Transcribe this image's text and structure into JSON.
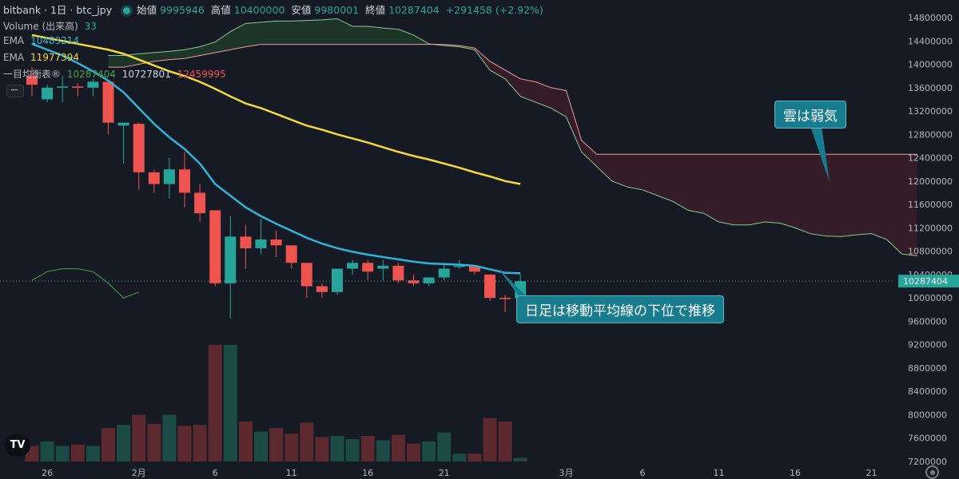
{
  "header": {
    "title": "bitbank · 1日 · btc_jpy",
    "open_label": "始値",
    "open_value": "9995946",
    "high_label": "高値",
    "high_value": "10400000",
    "low_label": "安値",
    "low_value": "9980001",
    "close_label": "終値",
    "close_value": "10287404",
    "change": "+291458 (+2.92%)"
  },
  "indicators": {
    "volume_label": "Volume (出来高)",
    "volume_value": "33",
    "ema1_label": "EMA",
    "ema1_value": "10483214",
    "ema2_label": "EMA",
    "ema2_value": "11977394",
    "ichimoku_label": "一目均衡表®",
    "ichimoku_v1": "10287404",
    "ichimoku_v2": "10727801",
    "ichimoku_v3": "12459995"
  },
  "annotations": {
    "cloud_note": "雲は弱気",
    "candle_note": "日足は移動平均線の下位で推移"
  },
  "logo_text": "TV",
  "colors": {
    "up": "#26a69a",
    "down": "#ef5350",
    "ema_fast": "#2bb5d9",
    "ema_slow": "#f5d93a",
    "cloud_bear": "#3a1f2a",
    "cloud_bull": "#1f3a2a"
  },
  "chart_data": {
    "type": "candlestick",
    "y_ticks": [
      "7200000",
      "7600000",
      "8000000",
      "8400000",
      "8800000",
      "9200000",
      "9600000",
      "10000000",
      "10400000",
      "10800000",
      "11200000",
      "11600000",
      "12000000",
      "12400000",
      "12800000",
      "13200000",
      "13600000",
      "14000000",
      "14400000",
      "14800000"
    ],
    "x_ticks": [
      {
        "label": "26",
        "index": 1
      },
      {
        "label": "2月",
        "index": 7
      },
      {
        "label": "6",
        "index": 12
      },
      {
        "label": "11",
        "index": 17
      },
      {
        "label": "16",
        "index": 22
      },
      {
        "label": "21",
        "index": 27
      },
      {
        "label": "3月",
        "index": 35
      },
      {
        "label": "6",
        "index": 40
      },
      {
        "label": "11",
        "index": 45
      },
      {
        "label": "16",
        "index": 50
      },
      {
        "label": "21",
        "index": 55
      }
    ],
    "last_price": "10287404",
    "candles": [
      {
        "o": 13800000,
        "h": 13950000,
        "l": 13450000,
        "c": 13650000,
        "v": 140
      },
      {
        "o": 13400000,
        "h": 13650000,
        "l": 13350000,
        "c": 13600000,
        "v": 180
      },
      {
        "o": 13600000,
        "h": 13800000,
        "l": 13350000,
        "c": 13620000,
        "v": 140
      },
      {
        "o": 13620000,
        "h": 13680000,
        "l": 13450000,
        "c": 13600000,
        "v": 150
      },
      {
        "o": 13600000,
        "h": 13750000,
        "l": 13450000,
        "c": 13700000,
        "v": 140
      },
      {
        "o": 13700000,
        "h": 13700000,
        "l": 12800000,
        "c": 13000000,
        "v": 300
      },
      {
        "o": 12950000,
        "h": 13000000,
        "l": 12300000,
        "c": 13000000,
        "v": 330
      },
      {
        "o": 12980000,
        "h": 13000000,
        "l": 11850000,
        "c": 12150000,
        "v": 420
      },
      {
        "o": 12150000,
        "h": 12200000,
        "l": 11800000,
        "c": 11950000,
        "v": 340
      },
      {
        "o": 11950000,
        "h": 12400000,
        "l": 11700000,
        "c": 12200000,
        "v": 420
      },
      {
        "o": 12200000,
        "h": 12500000,
        "l": 11550000,
        "c": 11800000,
        "v": 320
      },
      {
        "o": 11800000,
        "h": 11950000,
        "l": 11300000,
        "c": 11450000,
        "v": 330
      },
      {
        "o": 11500000,
        "h": 11500000,
        "l": 10200000,
        "c": 10250000,
        "v": 1050
      },
      {
        "o": 10250000,
        "h": 11400000,
        "l": 9650000,
        "c": 11050000,
        "v": 1050
      },
      {
        "o": 11050000,
        "h": 11250000,
        "l": 10500000,
        "c": 10850000,
        "v": 360
      },
      {
        "o": 10850000,
        "h": 11350000,
        "l": 10750000,
        "c": 11000000,
        "v": 270
      },
      {
        "o": 11000000,
        "h": 11150000,
        "l": 10700000,
        "c": 10900000,
        "v": 300
      },
      {
        "o": 10900000,
        "h": 10900000,
        "l": 10500000,
        "c": 10600000,
        "v": 250
      },
      {
        "o": 10600000,
        "h": 10600000,
        "l": 10000000,
        "c": 10200000,
        "v": 350
      },
      {
        "o": 10200000,
        "h": 10250000,
        "l": 10000000,
        "c": 10100000,
        "v": 220
      },
      {
        "o": 10100000,
        "h": 10500000,
        "l": 10050000,
        "c": 10500000,
        "v": 230
      },
      {
        "o": 10500000,
        "h": 10650000,
        "l": 10400000,
        "c": 10600000,
        "v": 200
      },
      {
        "o": 10600000,
        "h": 10650000,
        "l": 10300000,
        "c": 10450000,
        "v": 230
      },
      {
        "o": 10500000,
        "h": 10650000,
        "l": 10300000,
        "c": 10550000,
        "v": 190
      },
      {
        "o": 10550000,
        "h": 10600000,
        "l": 10250000,
        "c": 10300000,
        "v": 240
      },
      {
        "o": 10300000,
        "h": 10400000,
        "l": 10200000,
        "c": 10250000,
        "v": 160
      },
      {
        "o": 10250000,
        "h": 10350000,
        "l": 10200000,
        "c": 10350000,
        "v": 180
      },
      {
        "o": 10350000,
        "h": 10600000,
        "l": 10300000,
        "c": 10500000,
        "v": 260
      },
      {
        "o": 10550000,
        "h": 10650000,
        "l": 10500000,
        "c": 10550000,
        "v": 70
      },
      {
        "o": 10550000,
        "h": 10550000,
        "l": 10400000,
        "c": 10450000,
        "v": 70
      },
      {
        "o": 10400000,
        "h": 10400000,
        "l": 9950000,
        "c": 10000000,
        "v": 390
      },
      {
        "o": 10000000,
        "h": 10050000,
        "l": 9750000,
        "c": 9990000,
        "v": 360
      },
      {
        "o": 9995946,
        "h": 10400000,
        "l": 9980001,
        "c": 10287404,
        "v": 33
      }
    ],
    "ema_fast": [
      [
        0,
        14350000
      ],
      [
        1,
        14250000
      ],
      [
        2,
        14150000
      ],
      [
        3,
        14020000
      ],
      [
        4,
        13880000
      ],
      [
        5,
        13720000
      ],
      [
        6,
        13520000
      ],
      [
        7,
        13250000
      ],
      [
        8,
        12980000
      ],
      [
        9,
        12750000
      ],
      [
        10,
        12550000
      ],
      [
        11,
        12300000
      ],
      [
        12,
        11950000
      ],
      [
        13,
        11750000
      ],
      [
        14,
        11550000
      ],
      [
        15,
        11400000
      ],
      [
        16,
        11270000
      ],
      [
        17,
        11150000
      ],
      [
        18,
        11030000
      ],
      [
        19,
        10930000
      ],
      [
        20,
        10850000
      ],
      [
        21,
        10790000
      ],
      [
        22,
        10740000
      ],
      [
        23,
        10700000
      ],
      [
        24,
        10660000
      ],
      [
        25,
        10620000
      ],
      [
        26,
        10590000
      ],
      [
        27,
        10580000
      ],
      [
        28,
        10570000
      ],
      [
        29,
        10550000
      ],
      [
        30,
        10490000
      ],
      [
        31,
        10430000
      ],
      [
        32,
        10420000
      ]
    ],
    "ema_slow": [
      [
        0,
        14500000
      ],
      [
        1,
        14450000
      ],
      [
        2,
        14400000
      ],
      [
        3,
        14350000
      ],
      [
        4,
        14300000
      ],
      [
        5,
        14250000
      ],
      [
        6,
        14180000
      ],
      [
        7,
        14080000
      ],
      [
        8,
        13980000
      ],
      [
        9,
        13880000
      ],
      [
        10,
        13800000
      ],
      [
        11,
        13700000
      ],
      [
        12,
        13580000
      ],
      [
        13,
        13450000
      ],
      [
        14,
        13330000
      ],
      [
        15,
        13250000
      ],
      [
        16,
        13150000
      ],
      [
        17,
        13050000
      ],
      [
        18,
        12950000
      ],
      [
        19,
        12880000
      ],
      [
        20,
        12800000
      ],
      [
        21,
        12730000
      ],
      [
        22,
        12660000
      ],
      [
        23,
        12580000
      ],
      [
        24,
        12500000
      ],
      [
        25,
        12430000
      ],
      [
        26,
        12370000
      ],
      [
        27,
        12300000
      ],
      [
        28,
        12230000
      ],
      [
        29,
        12150000
      ],
      [
        30,
        12080000
      ],
      [
        31,
        12000000
      ],
      [
        32,
        11950000
      ]
    ],
    "span_a": [
      [
        5,
        14150000
      ],
      [
        6,
        14150000
      ],
      [
        7,
        14180000
      ],
      [
        8,
        14200000
      ],
      [
        9,
        14220000
      ],
      [
        10,
        14250000
      ],
      [
        11,
        14300000
      ],
      [
        12,
        14380000
      ],
      [
        13,
        14560000
      ],
      [
        14,
        14700000
      ],
      [
        15,
        14720000
      ],
      [
        16,
        14740000
      ],
      [
        17,
        14740000
      ],
      [
        18,
        14750000
      ],
      [
        19,
        14760000
      ],
      [
        20,
        14780000
      ],
      [
        21,
        14650000
      ],
      [
        22,
        14650000
      ],
      [
        23,
        14620000
      ],
      [
        24,
        14600000
      ],
      [
        25,
        14500000
      ],
      [
        26,
        14350000
      ],
      [
        27,
        14320000
      ],
      [
        28,
        14300000
      ],
      [
        29,
        14250000
      ],
      [
        30,
        13900000
      ],
      [
        31,
        13750000
      ],
      [
        32,
        13450000
      ],
      [
        33,
        13350000
      ],
      [
        34,
        13250000
      ],
      [
        35,
        13100000
      ],
      [
        36,
        12500000
      ],
      [
        37,
        12250000
      ],
      [
        38,
        12000000
      ],
      [
        39,
        11900000
      ],
      [
        40,
        11850000
      ],
      [
        41,
        11750000
      ],
      [
        42,
        11650000
      ],
      [
        43,
        11500000
      ],
      [
        44,
        11450000
      ],
      [
        45,
        11300000
      ],
      [
        46,
        11250000
      ],
      [
        47,
        11250000
      ],
      [
        48,
        11300000
      ],
      [
        49,
        11280000
      ],
      [
        50,
        11200000
      ],
      [
        51,
        11100000
      ],
      [
        52,
        11060000
      ],
      [
        53,
        11050000
      ],
      [
        54,
        11080000
      ],
      [
        55,
        11100000
      ],
      [
        56,
        11000000
      ],
      [
        57,
        10750000
      ],
      [
        58,
        10720000
      ]
    ],
    "span_b": [
      [
        5,
        13950000
      ],
      [
        6,
        13950000
      ],
      [
        7,
        14000000
      ],
      [
        8,
        14050000
      ],
      [
        9,
        14080000
      ],
      [
        10,
        14100000
      ],
      [
        11,
        14150000
      ],
      [
        12,
        14200000
      ],
      [
        13,
        14250000
      ],
      [
        14,
        14300000
      ],
      [
        15,
        14340000
      ],
      [
        16,
        14340000
      ],
      [
        17,
        14340000
      ],
      [
        18,
        14340000
      ],
      [
        19,
        14340000
      ],
      [
        20,
        14340000
      ],
      [
        21,
        14340000
      ],
      [
        22,
        14340000
      ],
      [
        23,
        14340000
      ],
      [
        24,
        14340000
      ],
      [
        25,
        14340000
      ],
      [
        26,
        14340000
      ],
      [
        27,
        14340000
      ],
      [
        28,
        14320000
      ],
      [
        29,
        14280000
      ],
      [
        30,
        14050000
      ],
      [
        31,
        13900000
      ],
      [
        32,
        13750000
      ],
      [
        33,
        13700000
      ],
      [
        34,
        13600000
      ],
      [
        35,
        13550000
      ],
      [
        36,
        12700000
      ],
      [
        37,
        12460000
      ],
      [
        58,
        12460000
      ]
    ],
    "lagging": [
      [
        0,
        10300000
      ],
      [
        1,
        10450000
      ],
      [
        2,
        10500000
      ],
      [
        3,
        10500000
      ],
      [
        4,
        10450000
      ],
      [
        5,
        10250000
      ],
      [
        6,
        10000000
      ],
      [
        7,
        10100000
      ]
    ]
  }
}
